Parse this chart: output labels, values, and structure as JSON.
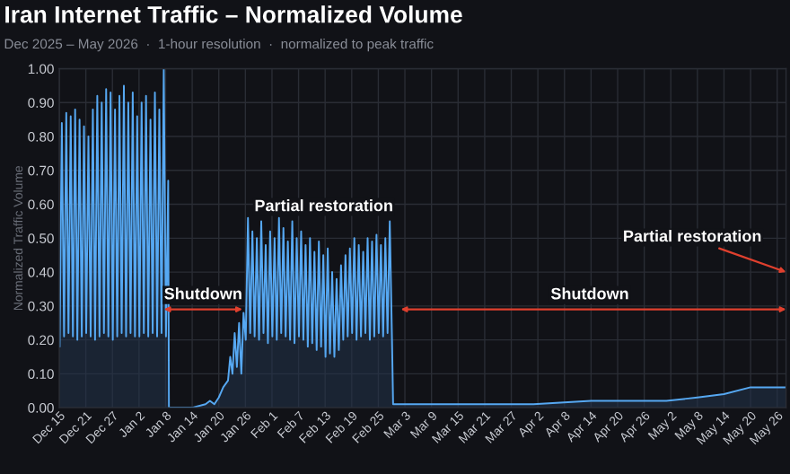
{
  "chart_data": {
    "type": "area",
    "title": "Iran Internet Traffic – Normalized Volume",
    "subtitle": "Dec 2025 – May 2026  ·  1-hour resolution  ·  normalized to peak traffic",
    "ylabel": "Normalized Traffic Volume",
    "x": [
      "2025-12-15T02:00",
      "2025-12-15T14:00",
      "2025-12-16T02:00",
      "2025-12-16T14:00",
      "2025-12-17T02:00",
      "2025-12-17T14:00",
      "2025-12-18T02:00",
      "2025-12-18T14:00",
      "2025-12-19T02:00",
      "2025-12-19T14:00",
      "2025-12-20T02:00",
      "2025-12-20T14:00",
      "2025-12-21T02:00",
      "2025-12-21T14:00",
      "2025-12-22T02:00",
      "2025-12-22T14:00",
      "2025-12-23T02:00",
      "2025-12-23T14:00",
      "2025-12-24T02:00",
      "2025-12-24T14:00",
      "2025-12-25T02:00",
      "2025-12-25T14:00",
      "2025-12-26T02:00",
      "2025-12-26T14:00",
      "2025-12-27T02:00",
      "2025-12-27T14:00",
      "2025-12-28T02:00",
      "2025-12-28T14:00",
      "2025-12-29T02:00",
      "2025-12-29T14:00",
      "2025-12-30T02:00",
      "2025-12-30T14:00",
      "2025-12-31T02:00",
      "2025-12-31T14:00",
      "2026-01-01T02:00",
      "2026-01-01T14:00",
      "2026-01-02T02:00",
      "2026-01-02T14:00",
      "2026-01-03T02:00",
      "2026-01-03T14:00",
      "2026-01-04T02:00",
      "2026-01-04T14:00",
      "2026-01-05T02:00",
      "2026-01-05T14:00",
      "2026-01-06T02:00",
      "2026-01-06T14:00",
      "2026-01-07T02:00",
      "2026-01-07T14:00",
      "2026-01-08T02:00",
      "2026-01-08T14:00",
      "2026-01-08T18:00",
      "2026-01-10T00:00",
      "2026-01-14T00:00",
      "2026-01-17T00:00",
      "2026-01-18T00:00",
      "2026-01-19T00:00",
      "2026-01-20T00:00",
      "2026-01-21T00:00",
      "2026-01-22T02:00",
      "2026-01-22T14:00",
      "2026-01-23T02:00",
      "2026-01-23T14:00",
      "2026-01-24T02:00",
      "2026-01-24T14:00",
      "2026-01-25T02:00",
      "2026-01-25T14:00",
      "2026-01-26T02:00",
      "2026-01-26T14:00",
      "2026-01-27T02:00",
      "2026-01-27T14:00",
      "2026-01-28T02:00",
      "2026-01-28T14:00",
      "2026-01-29T02:00",
      "2026-01-29T14:00",
      "2026-01-30T02:00",
      "2026-01-30T14:00",
      "2026-01-31T02:00",
      "2026-01-31T14:00",
      "2026-02-01T02:00",
      "2026-02-01T14:00",
      "2026-02-02T02:00",
      "2026-02-02T14:00",
      "2026-02-03T02:00",
      "2026-02-03T14:00",
      "2026-02-04T02:00",
      "2026-02-04T14:00",
      "2026-02-05T02:00",
      "2026-02-05T14:00",
      "2026-02-06T02:00",
      "2026-02-06T14:00",
      "2026-02-07T02:00",
      "2026-02-07T14:00",
      "2026-02-08T02:00",
      "2026-02-08T14:00",
      "2026-02-09T02:00",
      "2026-02-09T14:00",
      "2026-02-10T02:00",
      "2026-02-10T14:00",
      "2026-02-11T02:00",
      "2026-02-11T14:00",
      "2026-02-12T02:00",
      "2026-02-12T14:00",
      "2026-02-13T02:00",
      "2026-02-13T14:00",
      "2026-02-14T02:00",
      "2026-02-14T14:00",
      "2026-02-15T02:00",
      "2026-02-15T14:00",
      "2026-02-16T02:00",
      "2026-02-16T14:00",
      "2026-02-17T02:00",
      "2026-02-17T14:00",
      "2026-02-18T02:00",
      "2026-02-18T14:00",
      "2026-02-19T02:00",
      "2026-02-19T14:00",
      "2026-02-20T02:00",
      "2026-02-20T14:00",
      "2026-02-21T02:00",
      "2026-02-21T14:00",
      "2026-02-22T02:00",
      "2026-02-22T14:00",
      "2026-02-23T02:00",
      "2026-02-23T14:00",
      "2026-02-24T02:00",
      "2026-02-24T14:00",
      "2026-02-25T02:00",
      "2026-02-25T14:00",
      "2026-02-26T02:00",
      "2026-02-26T14:00",
      "2026-02-27T02:00",
      "2026-02-27T14:00",
      "2026-02-28T02:00",
      "2026-02-28T08:00",
      "2026-03-05T00:00",
      "2026-03-20T00:00",
      "2026-04-01T00:00",
      "2026-04-14T00:00",
      "2026-04-20T00:00",
      "2026-05-01T00:00",
      "2026-05-08T00:00",
      "2026-05-14T00:00",
      "2026-05-20T00:00",
      "2026-05-28T00:00"
    ],
    "series": [
      {
        "color": "#56a8f2",
        "values": [
          0.18,
          0.84,
          0.21,
          0.87,
          0.22,
          0.86,
          0.21,
          0.88,
          0.2,
          0.85,
          0.21,
          0.83,
          0.22,
          0.8,
          0.21,
          0.88,
          0.2,
          0.92,
          0.21,
          0.9,
          0.22,
          0.94,
          0.21,
          0.93,
          0.2,
          0.88,
          0.21,
          0.92,
          0.22,
          0.95,
          0.21,
          0.9,
          0.22,
          0.93,
          0.21,
          0.86,
          0.21,
          0.9,
          0.22,
          0.92,
          0.21,
          0.85,
          0.22,
          0.93,
          0.21,
          0.88,
          0.22,
          1.0,
          0.21,
          0.67,
          0.0,
          0.0,
          0.0,
          0.01,
          0.02,
          0.01,
          0.03,
          0.06,
          0.08,
          0.15,
          0.1,
          0.22,
          0.12,
          0.25,
          0.1,
          0.28,
          0.2,
          0.56,
          0.22,
          0.52,
          0.21,
          0.5,
          0.2,
          0.55,
          0.22,
          0.48,
          0.19,
          0.52,
          0.21,
          0.5,
          0.2,
          0.56,
          0.22,
          0.53,
          0.21,
          0.49,
          0.2,
          0.55,
          0.19,
          0.5,
          0.21,
          0.52,
          0.2,
          0.48,
          0.18,
          0.5,
          0.19,
          0.46,
          0.17,
          0.49,
          0.18,
          0.45,
          0.15,
          0.47,
          0.16,
          0.4,
          0.15,
          0.38,
          0.17,
          0.42,
          0.2,
          0.45,
          0.21,
          0.47,
          0.22,
          0.5,
          0.2,
          0.48,
          0.21,
          0.46,
          0.22,
          0.5,
          0.2,
          0.49,
          0.21,
          0.51,
          0.22,
          0.48,
          0.21,
          0.5,
          0.22,
          0.55,
          0.2,
          0.01,
          0.01,
          0.01,
          0.01,
          0.02,
          0.02,
          0.02,
          0.03,
          0.04,
          0.06,
          0.06
        ]
      }
    ],
    "xlim": [
      "2025-12-15",
      "2026-05-28"
    ],
    "xticks": [
      {
        "value": "2025-12-15",
        "label": "Dec 15"
      },
      {
        "value": "2025-12-21",
        "label": "Dec 21"
      },
      {
        "value": "2025-12-27",
        "label": "Dec 27"
      },
      {
        "value": "2026-01-02",
        "label": "Jan 2"
      },
      {
        "value": "2026-01-08",
        "label": "Jan 8"
      },
      {
        "value": "2026-01-14",
        "label": "Jan 14"
      },
      {
        "value": "2026-01-20",
        "label": "Jan 20"
      },
      {
        "value": "2026-01-26",
        "label": "Jan 26"
      },
      {
        "value": "2026-02-01",
        "label": "Feb 1"
      },
      {
        "value": "2026-02-07",
        "label": "Feb 7"
      },
      {
        "value": "2026-02-13",
        "label": "Feb 13"
      },
      {
        "value": "2026-02-19",
        "label": "Feb 19"
      },
      {
        "value": "2026-02-25",
        "label": "Feb 25"
      },
      {
        "value": "2026-03-03",
        "label": "Mar 3"
      },
      {
        "value": "2026-03-09",
        "label": "Mar 9"
      },
      {
        "value": "2026-03-15",
        "label": "Mar 15"
      },
      {
        "value": "2026-03-21",
        "label": "Mar 21"
      },
      {
        "value": "2026-03-27",
        "label": "Mar 27"
      },
      {
        "value": "2026-04-02",
        "label": "Apr 2"
      },
      {
        "value": "2026-04-08",
        "label": "Apr 8"
      },
      {
        "value": "2026-04-14",
        "label": "Apr 14"
      },
      {
        "value": "2026-04-20",
        "label": "Apr 20"
      },
      {
        "value": "2026-04-26",
        "label": "Apr 26"
      },
      {
        "value": "2026-05-02",
        "label": "May 2"
      },
      {
        "value": "2026-05-08",
        "label": "May 8"
      },
      {
        "value": "2026-05-14",
        "label": "May 14"
      },
      {
        "value": "2026-05-20",
        "label": "May 20"
      },
      {
        "value": "2026-05-26",
        "label": "May 26"
      }
    ],
    "ylim": [
      0,
      1.0
    ],
    "yticks": [
      {
        "value": 0,
        "label": "0.00"
      },
      {
        "value": 0.1,
        "label": "0.10"
      },
      {
        "value": 0.2,
        "label": "0.20"
      },
      {
        "value": 0.3,
        "label": "0.30"
      },
      {
        "value": 0.4,
        "label": "0.40"
      },
      {
        "value": 0.5,
        "label": "0.50"
      },
      {
        "value": 0.6,
        "label": "0.60"
      },
      {
        "value": 0.7,
        "label": "0.70"
      },
      {
        "value": 0.8,
        "label": "0.80"
      },
      {
        "value": 0.9,
        "label": "0.90"
      },
      {
        "value": 1.0,
        "label": "1.00"
      }
    ],
    "grid": true,
    "annotations": [
      "Shutdown",
      "Partial restoration",
      "Shutdown",
      "Partial restoration"
    ]
  }
}
